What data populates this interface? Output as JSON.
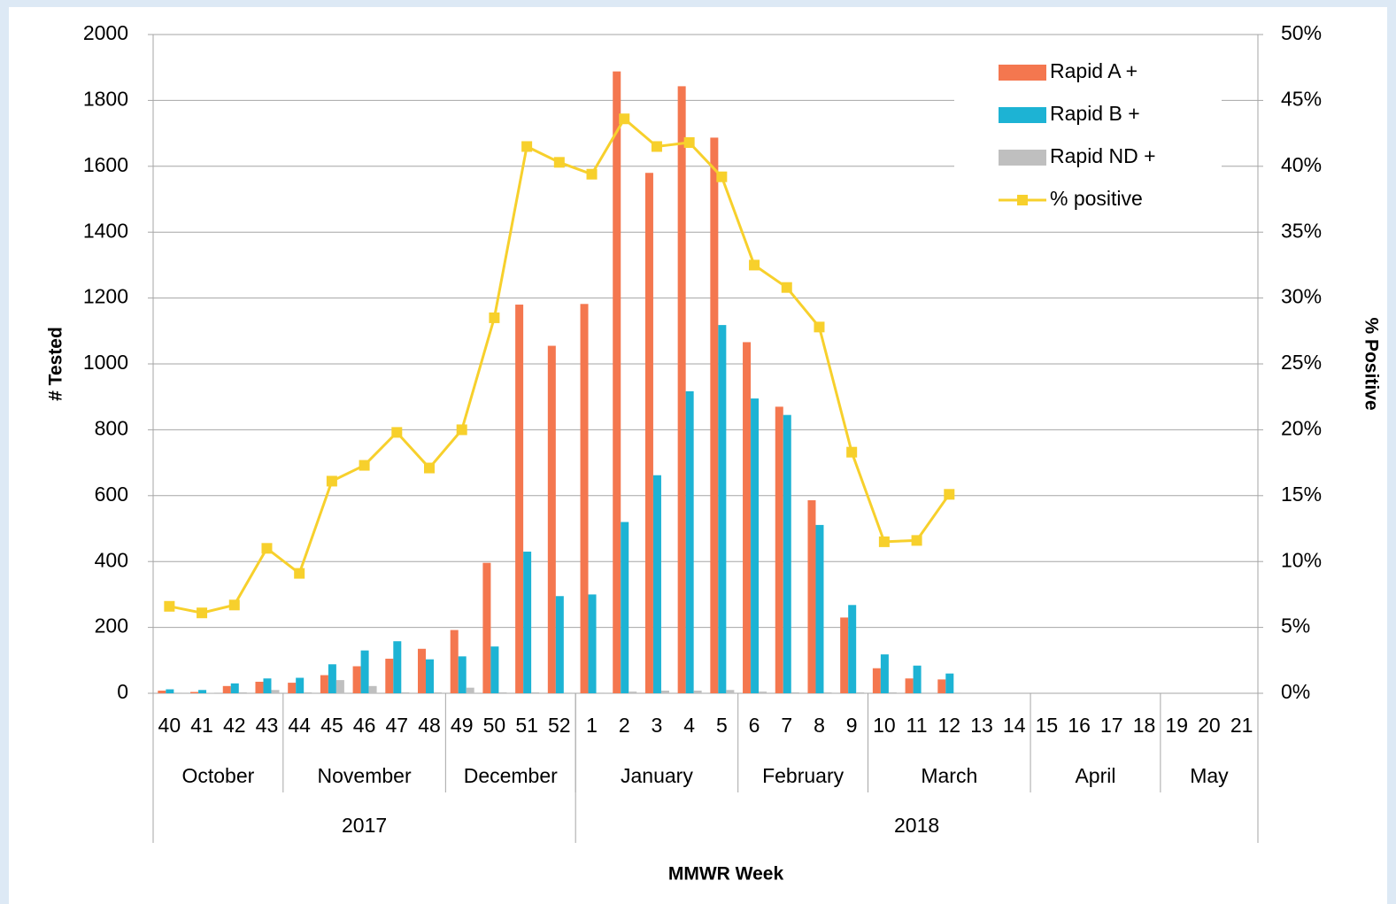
{
  "chart_data": {
    "type": "bar",
    "x_label": "MMWR Week",
    "y_label": "# Tested",
    "y2_label": "% Positive",
    "categories": [
      "40",
      "41",
      "42",
      "43",
      "44",
      "45",
      "46",
      "47",
      "48",
      "49",
      "50",
      "51",
      "52",
      "1",
      "2",
      "3",
      "4",
      "5",
      "6",
      "7",
      "8",
      "9",
      "10",
      "11",
      "12",
      "13",
      "14",
      "15",
      "16",
      "17",
      "18",
      "19",
      "20",
      "21"
    ],
    "months": [
      "October",
      null,
      null,
      null,
      "November",
      null,
      null,
      null,
      null,
      "December",
      null,
      null,
      null,
      "January",
      null,
      null,
      null,
      null,
      "February",
      null,
      null,
      null,
      "March",
      null,
      null,
      null,
      null,
      "April",
      null,
      null,
      null,
      "May",
      null,
      null,
      null
    ],
    "years": [
      "2017",
      null,
      null,
      null,
      null,
      null,
      null,
      null,
      null,
      null,
      null,
      null,
      null,
      "2018",
      null,
      null,
      null,
      null,
      null,
      null,
      null,
      null,
      null,
      null,
      null,
      null,
      null,
      null,
      null,
      null,
      null,
      null,
      null,
      null
    ],
    "series": [
      {
        "name": "Rapid A +",
        "color": "#f4774f",
        "type": "bar",
        "values": [
          8,
          4,
          22,
          35,
          32,
          55,
          82,
          105,
          135,
          192,
          396,
          1180,
          1055,
          1182,
          1888,
          1580,
          1843,
          1687,
          1066,
          870,
          586,
          230,
          76,
          45,
          42,
          null,
          null,
          null,
          null,
          null,
          null,
          null,
          null,
          null
        ]
      },
      {
        "name": "Rapid B +",
        "color": "#1db3d4",
        "type": "bar",
        "values": [
          12,
          10,
          30,
          45,
          47,
          88,
          130,
          158,
          103,
          112,
          142,
          430,
          295,
          300,
          520,
          662,
          917,
          1118,
          895,
          845,
          511,
          268,
          118,
          84,
          60,
          null,
          null,
          null,
          null,
          null,
          null,
          null,
          null,
          null
        ]
      },
      {
        "name": "Rapid ND +",
        "color": "#bfbfbf",
        "type": "bar",
        "values": [
          2,
          1,
          3,
          10,
          3,
          40,
          22,
          3,
          3,
          17,
          3,
          3,
          2,
          2,
          5,
          8,
          8,
          10,
          5,
          3,
          3,
          3,
          3,
          2,
          2,
          null,
          null,
          null,
          null,
          null,
          null,
          null,
          null,
          null
        ]
      },
      {
        "name": "% positive",
        "color": "#f7d02c",
        "type": "line",
        "axis": "y2",
        "values": [
          6.6,
          6.1,
          6.7,
          11.0,
          9.1,
          16.1,
          17.3,
          19.8,
          17.1,
          20.0,
          28.5,
          41.5,
          40.3,
          39.4,
          43.6,
          41.5,
          41.8,
          39.2,
          32.5,
          30.8,
          27.8,
          18.3,
          11.5,
          11.6,
          15.1,
          null,
          null,
          null,
          null,
          null,
          null,
          null,
          null,
          null
        ]
      }
    ],
    "ylim": [
      0,
      2000
    ],
    "yticks": [
      0,
      200,
      400,
      600,
      800,
      1000,
      1200,
      1400,
      1600,
      1800,
      2000
    ],
    "y2lim": [
      0,
      50
    ],
    "y2ticks": [
      {
        "value": 0,
        "label": "0%"
      },
      {
        "value": 5,
        "label": "5%"
      },
      {
        "value": 10,
        "label": "10%"
      },
      {
        "value": 15,
        "label": "15%"
      },
      {
        "value": 20,
        "label": "20%"
      },
      {
        "value": 25,
        "label": "25%"
      },
      {
        "value": 30,
        "label": "30%"
      },
      {
        "value": 35,
        "label": "35%"
      },
      {
        "value": 40,
        "label": "40%"
      },
      {
        "value": 45,
        "label": "45%"
      },
      {
        "value": 50,
        "label": "50%"
      }
    ],
    "grid": true,
    "legend": "top-right"
  }
}
